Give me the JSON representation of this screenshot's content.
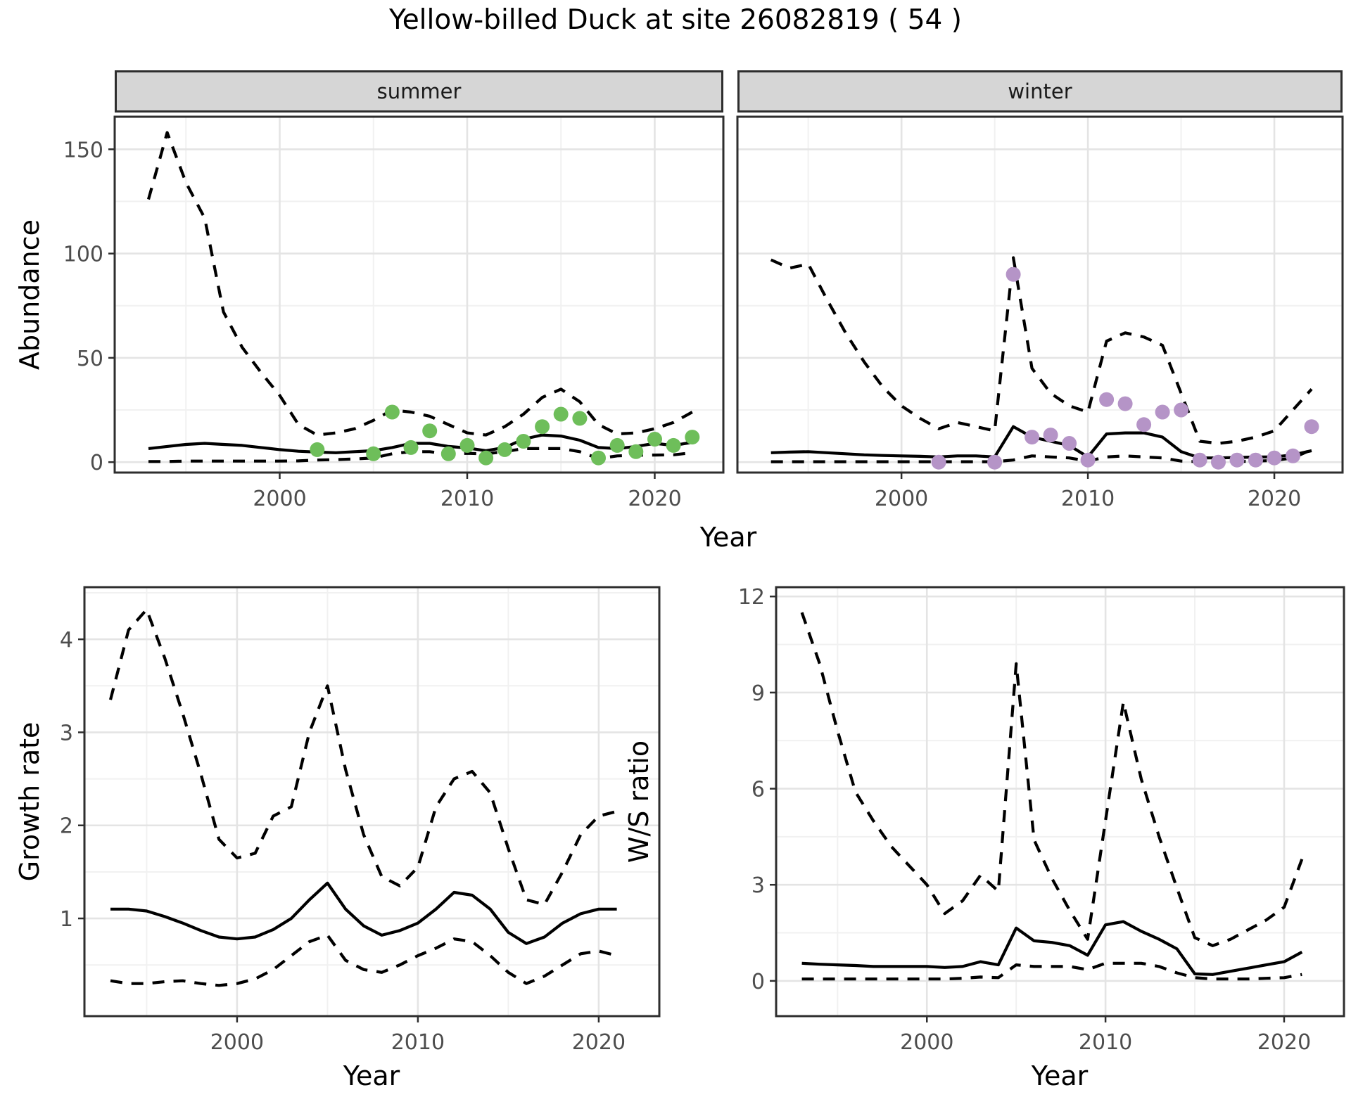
{
  "title": "Yellow-billed Duck at site 26082819 ( 54 )",
  "facets": {
    "summer": "summer",
    "winter": "winter"
  },
  "axes": {
    "top_ylabel": "Abundance",
    "top_xlabel": "Year",
    "bottom_left_ylabel": "Growth rate",
    "bottom_left_xlabel": "Year",
    "bottom_right_ylabel": "W/S ratio",
    "bottom_right_xlabel": "Year"
  },
  "colors": {
    "summer_points": "#6ebe5a",
    "winter_points": "#b594c7",
    "line": "#000000",
    "strip_bg": "#d6d6d6",
    "border": "#2e2e2e",
    "grid_major": "#e4e4e4",
    "grid_minor": "#f1f1f1",
    "tick_text": "#4d4d4d"
  },
  "chart_data": [
    {
      "id": "summer",
      "type": "line",
      "facet_label": "summer",
      "ylabel": "Abundance",
      "xlabel": "Year",
      "xlim": [
        1991.2,
        2023.66
      ],
      "ylim": [
        -5,
        165.6
      ],
      "xticks": [
        2000,
        2010,
        2020
      ],
      "xtick_labels": [
        "2000",
        "2010",
        "2020"
      ],
      "yticks": [
        0,
        50,
        100,
        150
      ],
      "ytick_labels": [
        "0",
        "50",
        "100",
        "150"
      ],
      "x_minor": [
        1995,
        2005,
        2015
      ],
      "y_minor": [
        25,
        75,
        125
      ],
      "show_y_tick_labels": true,
      "show_x_tick_labels": true,
      "x_years": [
        1993,
        1994,
        1995,
        1996,
        1997,
        1998,
        1999,
        2000,
        2001,
        2002,
        2003,
        2004,
        2005,
        2006,
        2007,
        2008,
        2009,
        2010,
        2011,
        2012,
        2013,
        2014,
        2015,
        2016,
        2017,
        2018,
        2019,
        2020,
        2021,
        2022
      ],
      "series": [
        {
          "name": "upper_95ci",
          "style": "dashed",
          "values": [
            126,
            158,
            134,
            117,
            72,
            55,
            43,
            32,
            18,
            13,
            14,
            16,
            20,
            25,
            24,
            22,
            18,
            14,
            13,
            17,
            23,
            31,
            35,
            29,
            18,
            13.5,
            14,
            16,
            19,
            24
          ]
        },
        {
          "name": "mean",
          "style": "solid",
          "values": [
            6.5,
            7.5,
            8.5,
            9,
            8.5,
            8,
            7,
            6,
            5.2,
            4.8,
            4.5,
            5,
            5.5,
            7,
            9,
            9,
            7.5,
            6.8,
            5.5,
            7,
            11,
            13,
            12.5,
            10.5,
            7,
            6.5,
            7.5,
            9,
            8,
            9.5
          ]
        },
        {
          "name": "lower_95ci",
          "style": "dashed",
          "values": [
            0.3,
            0.3,
            0.5,
            0.5,
            0.5,
            0.5,
            0.5,
            0.5,
            0.6,
            1,
            1.2,
            1.5,
            2,
            4,
            5,
            5,
            3.7,
            4.2,
            4,
            5,
            6.5,
            6.5,
            6.5,
            5,
            1.7,
            3,
            3.3,
            3.4,
            3.5,
            4.5
          ]
        }
      ],
      "points": {
        "name": "observed_counts",
        "color_key": "summer_points",
        "x": [
          2002,
          2005,
          2006,
          2007,
          2008,
          2009,
          2010,
          2011,
          2012,
          2013,
          2014,
          2015,
          2016,
          2017,
          2018,
          2019,
          2020,
          2021,
          2022
        ],
        "y": [
          6,
          4,
          24,
          7,
          15,
          4,
          8,
          2,
          6,
          10,
          17,
          23,
          21,
          2,
          8,
          5,
          11,
          8,
          12
        ]
      }
    },
    {
      "id": "winter",
      "type": "line",
      "facet_label": "winter",
      "ylabel": "Abundance",
      "xlabel": "Year",
      "xlim": [
        1991.2,
        2023.66
      ],
      "ylim": [
        -5,
        165.6
      ],
      "xticks": [
        2000,
        2010,
        2020
      ],
      "xtick_labels": [
        "2000",
        "2010",
        "2020"
      ],
      "yticks": [
        0,
        50,
        100,
        150
      ],
      "ytick_labels": [
        "0",
        "50",
        "100",
        "150"
      ],
      "x_minor": [
        1995,
        2005,
        2015
      ],
      "y_minor": [
        25,
        75,
        125
      ],
      "show_y_tick_labels": false,
      "show_x_tick_labels": true,
      "x_years": [
        1993,
        1994,
        1995,
        1996,
        1997,
        1998,
        1999,
        2000,
        2001,
        2002,
        2003,
        2004,
        2005,
        2006,
        2007,
        2008,
        2009,
        2010,
        2011,
        2012,
        2013,
        2014,
        2015,
        2016,
        2017,
        2018,
        2019,
        2020,
        2021,
        2022
      ],
      "series": [
        {
          "name": "upper_95ci",
          "style": "dashed",
          "values": [
            97,
            93,
            95,
            78,
            62,
            48,
            36,
            27,
            21,
            16,
            19,
            17,
            15,
            98,
            45,
            33,
            27,
            24,
            58,
            62,
            60,
            56,
            33,
            10,
            9,
            10,
            12,
            15,
            25,
            35
          ]
        },
        {
          "name": "mean",
          "style": "solid",
          "values": [
            4.5,
            4.8,
            5,
            4.5,
            4,
            3.5,
            3.2,
            3,
            2.8,
            2.5,
            3,
            3,
            2.5,
            17,
            12,
            10,
            8,
            2.5,
            13.5,
            14,
            14,
            12,
            5,
            2,
            2,
            2.2,
            2.5,
            2.5,
            3.5,
            5.5
          ]
        },
        {
          "name": "lower_95ci",
          "style": "dashed",
          "values": [
            0.2,
            0.2,
            0.2,
            0.2,
            0.2,
            0.2,
            0.2,
            0.2,
            0.2,
            0.2,
            0.2,
            0.2,
            0.2,
            1,
            3,
            2.5,
            2,
            0.5,
            2.5,
            3,
            2.5,
            2,
            0.5,
            0.2,
            0.2,
            0.3,
            0.5,
            0.8,
            2,
            6
          ]
        }
      ],
      "points": {
        "name": "observed_counts",
        "color_key": "winter_points",
        "x": [
          2002,
          2005,
          2006,
          2007,
          2008,
          2009,
          2010,
          2011,
          2012,
          2013,
          2014,
          2015,
          2016,
          2017,
          2018,
          2019,
          2020,
          2021,
          2022
        ],
        "y": [
          0,
          0,
          90,
          12,
          13,
          9,
          1,
          30,
          28,
          18,
          24,
          25,
          1,
          0,
          1,
          1,
          2,
          3,
          17
        ]
      }
    },
    {
      "id": "growth",
      "type": "line",
      "facet_label": "",
      "ylabel": "Growth rate",
      "xlabel": "Year",
      "xlim": [
        1991.56,
        2023.35
      ],
      "ylim": [
        -0.05,
        4.56
      ],
      "xticks": [
        2000,
        2010,
        2020
      ],
      "xtick_labels": [
        "2000",
        "2010",
        "2020"
      ],
      "yticks": [
        1,
        2,
        3,
        4
      ],
      "ytick_labels": [
        "1",
        "2",
        "3",
        "4"
      ],
      "x_minor": [
        1995,
        2005,
        2015
      ],
      "y_minor": [
        0.5,
        1.5,
        2.5,
        3.5,
        4.5
      ],
      "show_y_tick_labels": true,
      "show_x_tick_labels": true,
      "x_years": [
        1993,
        1994,
        1995,
        1996,
        1997,
        1998,
        1999,
        2000,
        2001,
        2002,
        2003,
        2004,
        2005,
        2006,
        2007,
        2008,
        2009,
        2010,
        2011,
        2012,
        2013,
        2014,
        2015,
        2016,
        2017,
        2018,
        2019,
        2020,
        2021
      ],
      "series": [
        {
          "name": "upper_95ci",
          "style": "dashed",
          "values": [
            3.35,
            4.1,
            4.32,
            3.8,
            3.2,
            2.55,
            1.85,
            1.65,
            1.7,
            2.1,
            2.2,
            3.0,
            3.5,
            2.6,
            1.9,
            1.45,
            1.35,
            1.55,
            2.2,
            2.5,
            2.58,
            2.35,
            1.75,
            1.2,
            1.15,
            1.5,
            1.9,
            2.1,
            2.15
          ]
        },
        {
          "name": "mean",
          "style": "solid",
          "values": [
            1.1,
            1.1,
            1.08,
            1.02,
            0.95,
            0.87,
            0.8,
            0.78,
            0.8,
            0.88,
            1.0,
            1.2,
            1.38,
            1.1,
            0.92,
            0.82,
            0.87,
            0.95,
            1.1,
            1.28,
            1.25,
            1.1,
            0.85,
            0.73,
            0.8,
            0.95,
            1.05,
            1.1,
            1.1
          ]
        },
        {
          "name": "lower_95ci",
          "style": "dashed",
          "values": [
            0.33,
            0.3,
            0.3,
            0.32,
            0.33,
            0.3,
            0.28,
            0.3,
            0.35,
            0.45,
            0.6,
            0.75,
            0.82,
            0.55,
            0.45,
            0.42,
            0.5,
            0.6,
            0.68,
            0.78,
            0.75,
            0.6,
            0.42,
            0.3,
            0.38,
            0.5,
            0.62,
            0.65,
            0.6
          ]
        }
      ],
      "points": null
    },
    {
      "id": "ws",
      "type": "line",
      "facet_label": "",
      "ylabel": "W/S ratio",
      "xlabel": "Year",
      "xlim": [
        1991.56,
        2023.35
      ],
      "ylim": [
        -1.1,
        12.29
      ],
      "xticks": [
        2000,
        2010,
        2020
      ],
      "xtick_labels": [
        "2000",
        "2010",
        "2020"
      ],
      "yticks": [
        0,
        3,
        6,
        9,
        12
      ],
      "ytick_labels": [
        "0",
        "3",
        "6",
        "9",
        "12"
      ],
      "x_minor": [
        1995,
        2005,
        2015
      ],
      "y_minor": [
        1.5,
        4.5,
        7.5,
        10.5
      ],
      "show_y_tick_labels": true,
      "show_x_tick_labels": true,
      "x_years": [
        1993,
        1994,
        1995,
        1996,
        1997,
        1998,
        1999,
        2000,
        2001,
        2002,
        2003,
        2004,
        2005,
        2006,
        2007,
        2008,
        2009,
        2010,
        2011,
        2012,
        2013,
        2014,
        2015,
        2016,
        2017,
        2018,
        2019,
        2020,
        2021
      ],
      "series": [
        {
          "name": "upper_95ci",
          "style": "dashed",
          "values": [
            11.5,
            9.9,
            7.8,
            5.9,
            5.0,
            4.2,
            3.6,
            3.0,
            2.1,
            2.5,
            3.3,
            2.8,
            9.9,
            4.4,
            3.2,
            2.2,
            1.3,
            5.0,
            8.7,
            6.3,
            4.5,
            2.9,
            1.35,
            1.1,
            1.3,
            1.6,
            1.9,
            2.3,
            3.8
          ]
        },
        {
          "name": "mean",
          "style": "solid",
          "values": [
            0.55,
            0.52,
            0.5,
            0.48,
            0.45,
            0.45,
            0.45,
            0.45,
            0.42,
            0.45,
            0.6,
            0.5,
            1.65,
            1.25,
            1.2,
            1.1,
            0.8,
            1.75,
            1.85,
            1.55,
            1.3,
            1.0,
            0.22,
            0.2,
            0.3,
            0.4,
            0.5,
            0.6,
            0.9
          ]
        },
        {
          "name": "lower_95ci",
          "style": "dashed",
          "values": [
            0.06,
            0.06,
            0.06,
            0.06,
            0.06,
            0.06,
            0.06,
            0.06,
            0.06,
            0.08,
            0.12,
            0.1,
            0.5,
            0.45,
            0.45,
            0.45,
            0.35,
            0.55,
            0.55,
            0.55,
            0.45,
            0.25,
            0.1,
            0.06,
            0.06,
            0.06,
            0.08,
            0.1,
            0.2
          ]
        }
      ],
      "points": null
    }
  ]
}
